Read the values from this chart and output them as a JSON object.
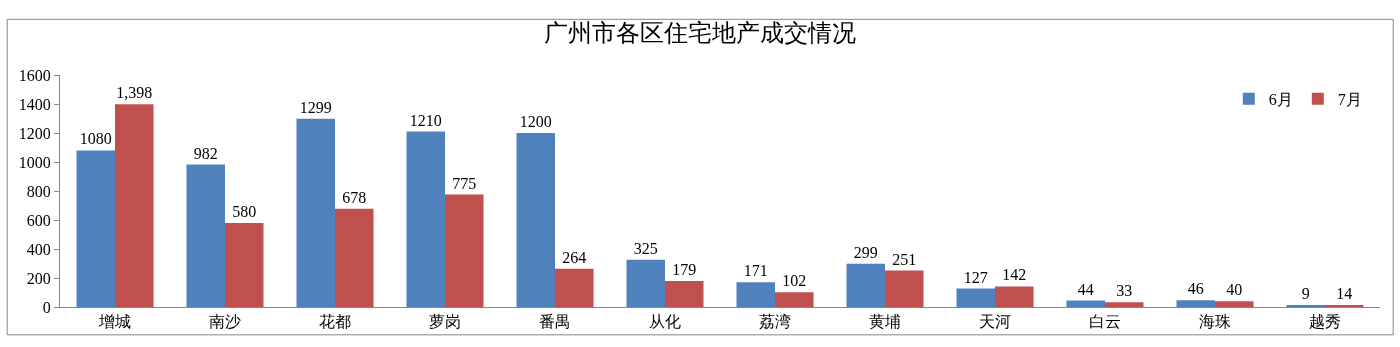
{
  "chart_data": {
    "type": "bar",
    "title": "广州市各区住宅地产成交情况",
    "categories": [
      "增城",
      "南沙",
      "花都",
      "萝岗",
      "番禺",
      "从化",
      "荔湾",
      "黄埔",
      "天河",
      "白云",
      "海珠",
      "越秀"
    ],
    "series": [
      {
        "name": "6月",
        "color": "#4f81bd",
        "values": [
          1080,
          982,
          1299,
          1210,
          1200,
          325,
          171,
          299,
          127,
          44,
          46,
          9
        ],
        "value_labels": [
          "1080",
          "982",
          "1299",
          "1210",
          "1200",
          "325",
          "171",
          "299",
          "127",
          "44",
          "46",
          "9"
        ]
      },
      {
        "name": "7月",
        "color": "#c0504d",
        "values": [
          1398,
          580,
          678,
          775,
          264,
          179,
          102,
          251,
          142,
          33,
          40,
          14
        ],
        "value_labels": [
          "1,398",
          "580",
          "678",
          "775",
          "264",
          "179",
          "102",
          "251",
          "142",
          "33",
          "40",
          "14"
        ]
      }
    ],
    "ylim": [
      0,
      1600
    ],
    "yticks": [
      0,
      200,
      400,
      600,
      800,
      1000,
      1200,
      1400,
      1600
    ],
    "grid": false,
    "legend": "top right"
  }
}
